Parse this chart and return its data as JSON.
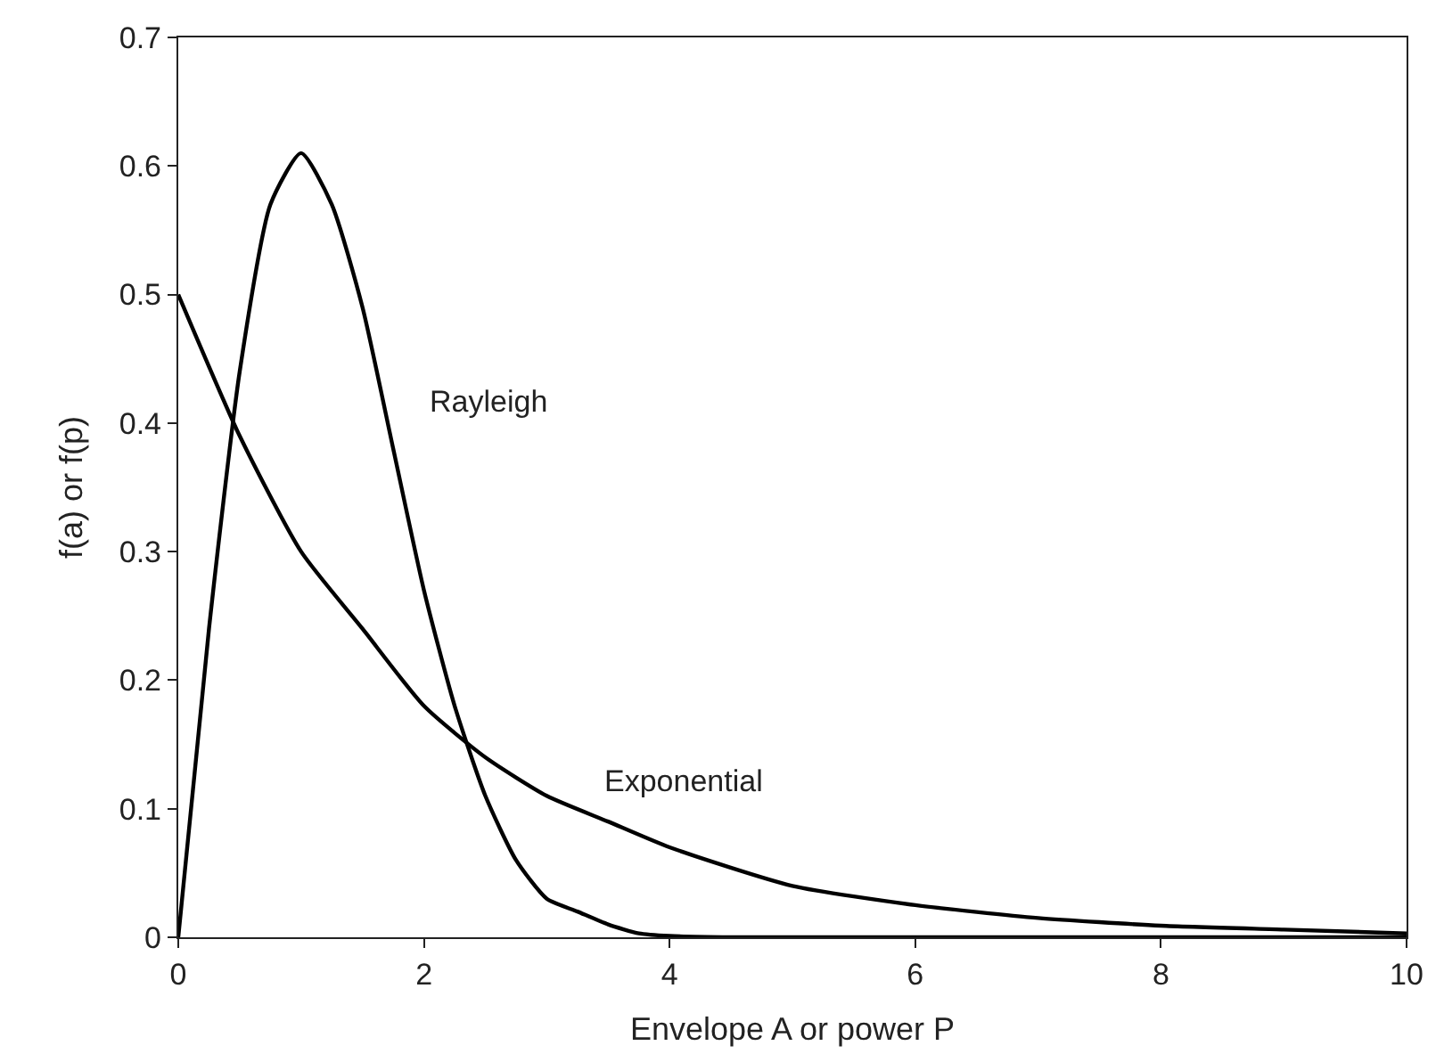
{
  "chart_data": {
    "type": "line",
    "xlabel": "Envelope A or power P",
    "ylabel": "f(a) or f(p)",
    "series": [
      {
        "name": "Rayleigh",
        "color": "#000000",
        "x": [
          0,
          0.25,
          0.5,
          0.75,
          1,
          1.25,
          1.5,
          1.75,
          2,
          2.25,
          2.5,
          2.75,
          3,
          3.25,
          3.5,
          3.75,
          4,
          4.5,
          5,
          6,
          8,
          10
        ],
        "values": [
          0,
          0.24,
          0.44,
          0.57,
          0.61,
          0.57,
          0.49,
          0.38,
          0.27,
          0.18,
          0.11,
          0.06,
          0.03,
          0.02,
          0.01,
          0.003,
          0.001,
          0,
          0,
          0,
          0,
          0
        ]
      },
      {
        "name": "Exponential",
        "color": "#000000",
        "x": [
          0,
          0.5,
          1,
          1.5,
          2,
          2.5,
          3,
          3.5,
          4,
          5,
          6,
          7,
          8,
          9,
          10
        ],
        "values": [
          0.5,
          0.39,
          0.3,
          0.24,
          0.18,
          0.14,
          0.11,
          0.09,
          0.07,
          0.04,
          0.025,
          0.015,
          0.009,
          0.006,
          0.003
        ]
      }
    ],
    "xlim": [
      0,
      10
    ],
    "xticks": [
      0,
      2,
      4,
      6,
      8,
      10
    ],
    "ylim": [
      0,
      0.7
    ],
    "yticks": [
      0,
      0.1,
      0.2,
      0.3,
      0.4,
      0.5,
      0.6,
      0.7
    ],
    "legend": false,
    "marker": "none",
    "line_style": "solid"
  }
}
